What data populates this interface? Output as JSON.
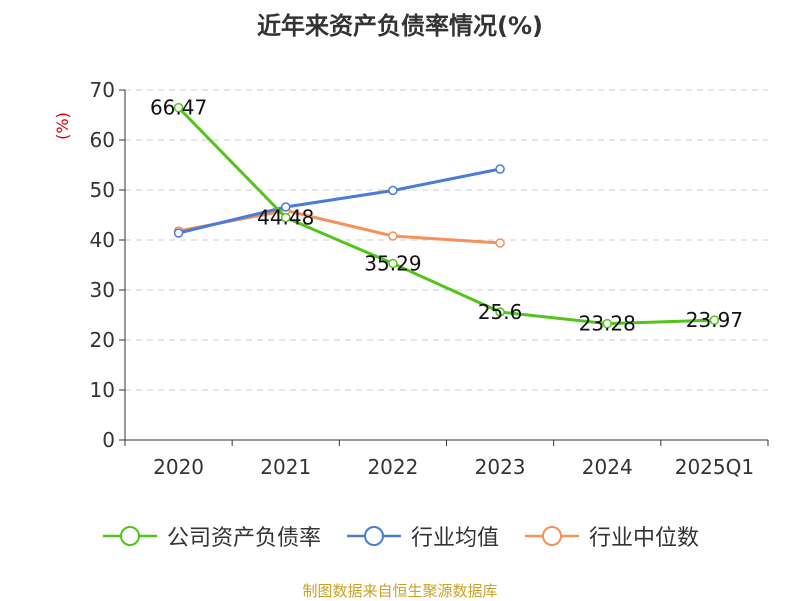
{
  "page": {
    "title": "近年来资产负债率情况(%)",
    "source": "制图数据来自恒生聚源数据库"
  },
  "chart_data": {
    "type": "line",
    "title": "近年来资产负债率情况(%)",
    "ylabel": "(%)",
    "xlabel": "",
    "ylim": [
      0,
      70
    ],
    "yticks": [
      0,
      10,
      20,
      30,
      40,
      50,
      60,
      70
    ],
    "categories": [
      "2020",
      "2021",
      "2022",
      "2023",
      "2024",
      "2025Q1"
    ],
    "grid": "horizontal dashed",
    "legend_position": "bottom",
    "series": [
      {
        "name": "公司资产负债率",
        "color": "#52c41a",
        "values": [
          66.47,
          44.48,
          35.29,
          25.6,
          23.28,
          23.97
        ],
        "labels": [
          "66.47",
          "44.48",
          "35.29",
          "25.6",
          "23.28",
          "23.97"
        ]
      },
      {
        "name": "行业均值",
        "color": "#4a7bd6",
        "values": [
          41.4,
          46.6,
          49.9,
          54.2,
          null,
          null
        ]
      },
      {
        "name": "行业中位数",
        "color": "#f5915a",
        "values": [
          41.8,
          45.9,
          40.8,
          39.4,
          null,
          null
        ]
      }
    ]
  }
}
